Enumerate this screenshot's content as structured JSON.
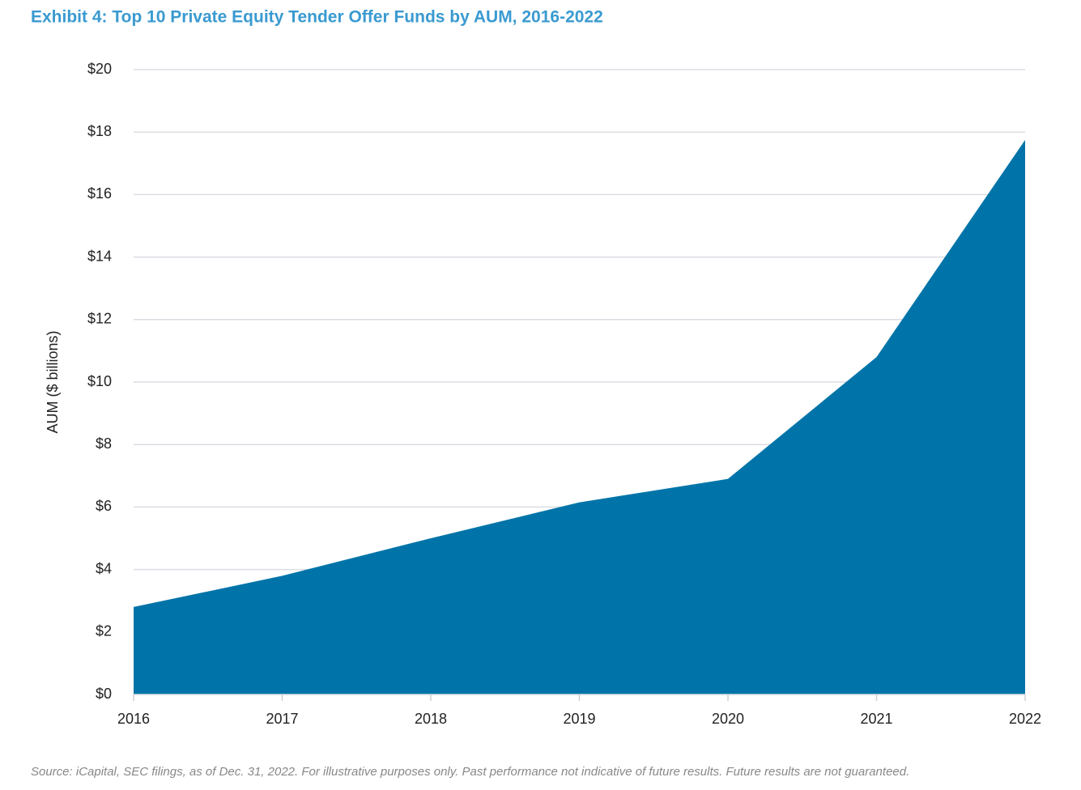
{
  "chart_data": {
    "type": "area",
    "title": "Exhibit 4: Top 10 Private Equity Tender Offer Funds by AUM, 2016-2022",
    "y_label": "AUM ($ billions)",
    "source": "Source: iCapital, SEC filings, as of Dec. 31, 2022. For illustrative purposes only. Past performance not indicative of future results. Future results are not guaranteed.",
    "x": [
      2016,
      2017,
      2018,
      2019,
      2020,
      2021,
      2022
    ],
    "values": [
      2.8,
      3.8,
      5.0,
      6.15,
      6.9,
      10.8,
      17.75
    ],
    "color": "#0074a8",
    "xlim": [
      2016,
      2022
    ],
    "xticks": [
      2016,
      2017,
      2018,
      2019,
      2020,
      2021,
      2022
    ],
    "ylim": [
      0,
      20
    ],
    "yticks": [
      {
        "value": 0,
        "label": "$0"
      },
      {
        "value": 2,
        "label": "$2"
      },
      {
        "value": 4,
        "label": "$4"
      },
      {
        "value": 6,
        "label": "$6"
      },
      {
        "value": 8,
        "label": "$8"
      },
      {
        "value": 10,
        "label": "$10"
      },
      {
        "value": 12,
        "label": "$12"
      },
      {
        "value": 14,
        "label": "$14"
      },
      {
        "value": 16,
        "label": "$16"
      },
      {
        "value": 18,
        "label": "$18"
      },
      {
        "value": 20,
        "label": "$20"
      }
    ],
    "grid": true
  }
}
